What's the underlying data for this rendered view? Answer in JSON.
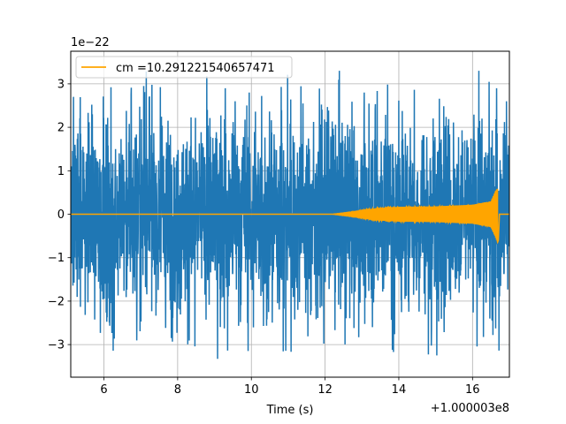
{
  "chart_data": {
    "type": "line",
    "xlabel": "Time (s)",
    "ylabel": "",
    "x_offset_label": "+1.000003e8",
    "y_scale_label": "1e−22",
    "xlim": [
      5.1,
      17.0
    ],
    "ylim": [
      -3.75,
      3.75
    ],
    "x_ticks": [
      {
        "value": 6,
        "label": "6"
      },
      {
        "value": 8,
        "label": "8"
      },
      {
        "value": 10,
        "label": "10"
      },
      {
        "value": 12,
        "label": "12"
      },
      {
        "value": 14,
        "label": "14"
      },
      {
        "value": 16,
        "label": "16"
      }
    ],
    "y_ticks": [
      {
        "value": 3,
        "label": "3"
      },
      {
        "value": 2,
        "label": "2"
      },
      {
        "value": 1,
        "label": "1"
      },
      {
        "value": 0,
        "label": "0"
      },
      {
        "value": -1,
        "label": "−1"
      },
      {
        "value": -2,
        "label": "−2"
      },
      {
        "value": -3,
        "label": "−3"
      }
    ],
    "grid": true,
    "legend_position": "upper-left",
    "series": [
      {
        "kind": "noise",
        "color": "#1f77b4",
        "typical_amplitude": 2.0,
        "peak_max": 3.3,
        "peak_min": -3.35
      },
      {
        "name": "cm =10.291221540657471",
        "kind": "chirp",
        "color": "#ffa500",
        "onset_x": 12.2,
        "merger_x": 16.68,
        "end_x": 17.0,
        "envelope": [
          {
            "x": 12.2,
            "amp": 0.0
          },
          {
            "x": 12.8,
            "amp": 0.06
          },
          {
            "x": 13.4,
            "amp": 0.14
          },
          {
            "x": 14.0,
            "amp": 0.17
          },
          {
            "x": 15.0,
            "amp": 0.18
          },
          {
            "x": 16.0,
            "amp": 0.22
          },
          {
            "x": 16.5,
            "amp": 0.3
          },
          {
            "x": 16.68,
            "amp": 0.65
          }
        ]
      }
    ]
  }
}
